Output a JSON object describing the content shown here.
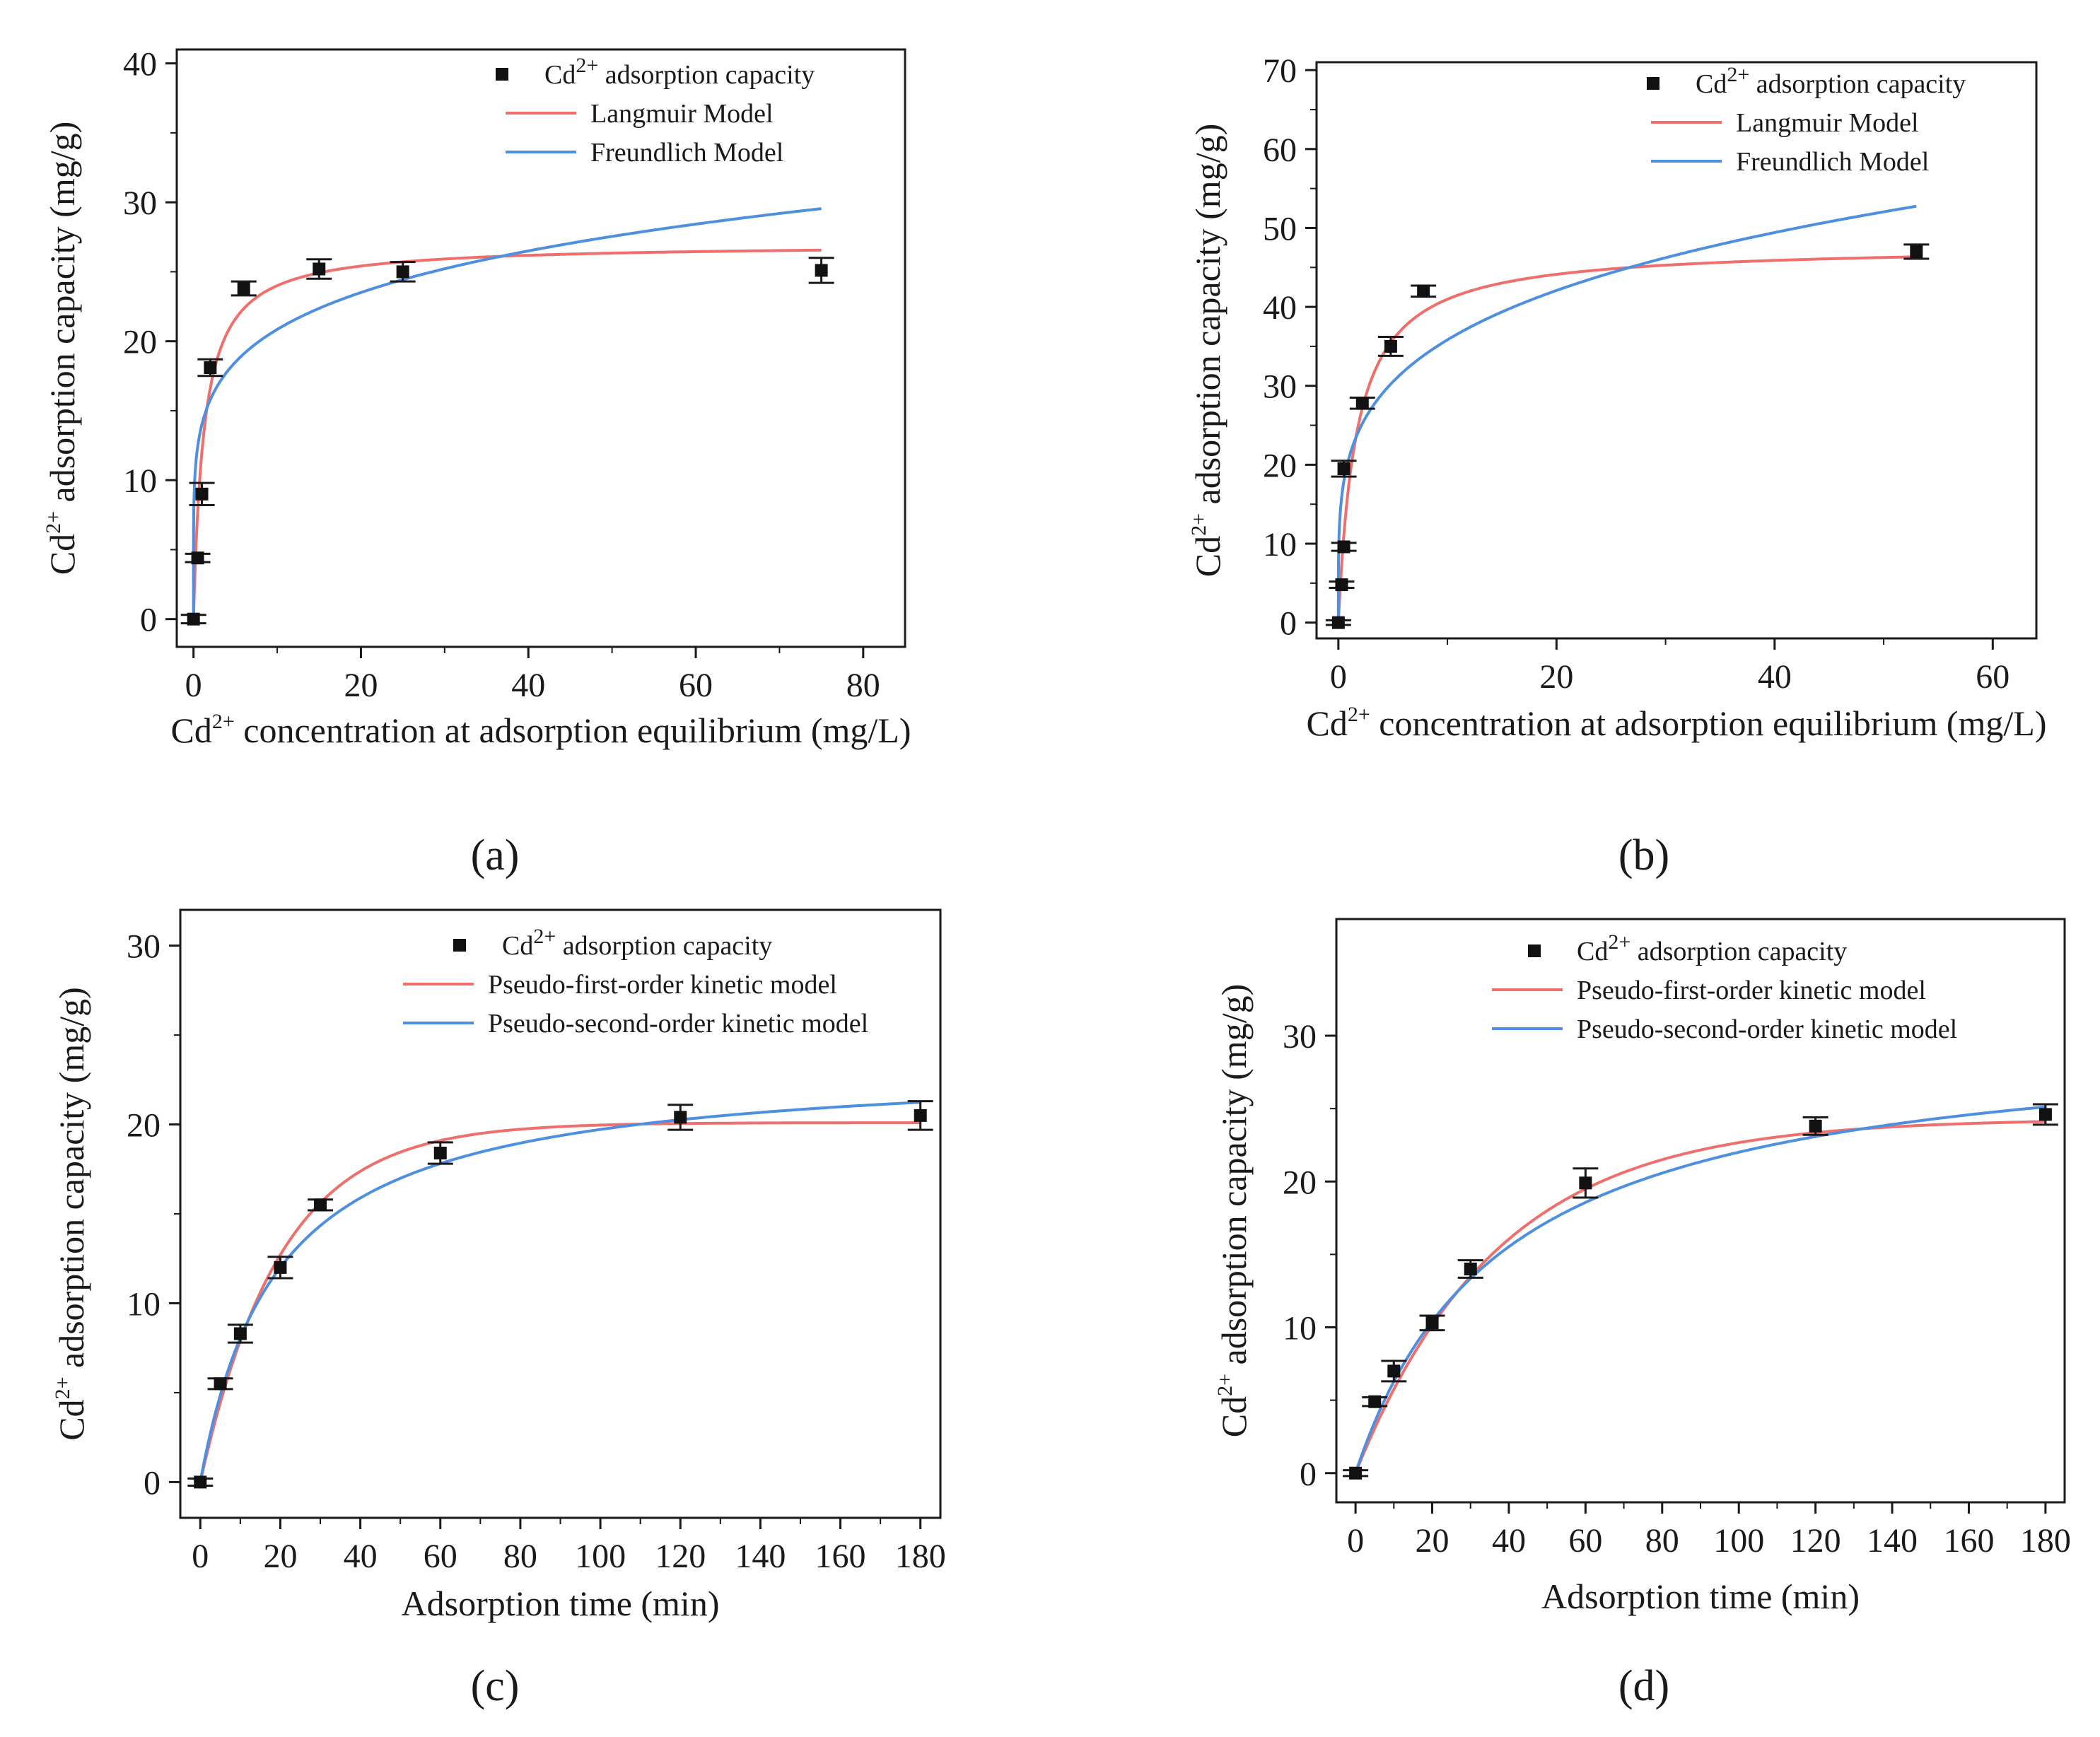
{
  "figure_labels": [
    "(a)",
    "(b)",
    "(c)",
    "(d)"
  ],
  "chart_data": [
    {
      "panel": "a",
      "type": "scatter",
      "ylabel_main": "Cd",
      "ylabel_sup": "2+",
      "ylabel_rest": " adsorption capacity (mg/g)",
      "xlabel_main": "Cd",
      "xlabel_sup": "2+",
      "xlabel_rest": " concentration at adsorption equilibrium (mg/L)",
      "xlim": [
        -2,
        85
      ],
      "ylim": [
        -2,
        41
      ],
      "xticks": [
        0,
        20,
        40,
        60,
        80
      ],
      "yticks": [
        0,
        10,
        20,
        30,
        40
      ],
      "points": {
        "name": "Cd2+ adsorption capacity",
        "legend_main": "Cd",
        "legend_sup": "2+",
        "legend_rest": " adsorption capacity",
        "x": [
          0,
          0.5,
          1,
          2,
          6,
          15,
          25,
          75
        ],
        "y": [
          0,
          4.4,
          9,
          18.1,
          23.8,
          25.2,
          25.0,
          25.1
        ],
        "err": [
          0.3,
          0.3,
          0.8,
          0.6,
          0.5,
          0.7,
          0.7,
          0.9
        ]
      },
      "curves": [
        {
          "name": "Langmuir Model",
          "color": "#ef6f6c",
          "model": "langmuir",
          "params": [
            27.0,
            0.8
          ],
          "xmax": 75
        },
        {
          "name": "Freundlich Model",
          "color": "#4f8fe0",
          "model": "freundlich",
          "params": [
            14.0,
            0.173
          ],
          "xmax": 75
        }
      ]
    },
    {
      "panel": "b",
      "type": "scatter",
      "ylabel_main": "Cd",
      "ylabel_sup": "2+",
      "ylabel_rest": " adsorption capacity (mg/g)",
      "xlabel_main": "Cd",
      "xlabel_sup": "2+",
      "xlabel_rest": " concentration at adsorption equilibrium (mg/L)",
      "xlim": [
        -2,
        64
      ],
      "ylim": [
        -2,
        71
      ],
      "xticks": [
        0,
        20,
        40,
        60
      ],
      "yticks": [
        0,
        10,
        20,
        30,
        40,
        50,
        60,
        70
      ],
      "points": {
        "name": "Cd2+ adsorption capacity",
        "legend_main": "Cd",
        "legend_sup": "2+",
        "legend_rest": " adsorption capacity",
        "x": [
          0,
          0.3,
          0.5,
          0.5,
          2.2,
          4.8,
          7.8,
          53
        ],
        "y": [
          0,
          4.8,
          9.6,
          19.5,
          27.8,
          35.0,
          42.0,
          47.0
        ],
        "err": [
          0.3,
          0.4,
          0.5,
          1.0,
          0.7,
          1.2,
          0.7,
          0.9
        ]
      },
      "curves": [
        {
          "name": "Langmuir Model",
          "color": "#ef6f6c",
          "model": "langmuir",
          "params": [
            47.8,
            0.6
          ],
          "xmax": 53
        },
        {
          "name": "Freundlich Model",
          "color": "#4f8fe0",
          "model": "freundlich",
          "params": [
            21.0,
            0.232
          ],
          "xmax": 53
        }
      ]
    },
    {
      "panel": "c",
      "type": "scatter",
      "ylabel_main": "Cd",
      "ylabel_sup": "2+",
      "ylabel_rest": " adsorption capacity (mg/g)",
      "xlabel_main": "Adsorption time (min)",
      "xlabel_sup": "",
      "xlabel_rest": "",
      "xlim": [
        -5,
        185
      ],
      "ylim": [
        -2,
        32
      ],
      "xticks": [
        0,
        20,
        40,
        60,
        80,
        100,
        120,
        140,
        160,
        180
      ],
      "yticks": [
        0,
        10,
        20,
        30
      ],
      "points": {
        "name": "Cd2+ adsorption capacity",
        "legend_main": "Cd",
        "legend_sup": "2+",
        "legend_rest": " adsorption capacity",
        "x": [
          0,
          5,
          10,
          20,
          30,
          60,
          120,
          180
        ],
        "y": [
          0,
          5.5,
          8.3,
          12.0,
          15.5,
          18.4,
          20.4,
          20.5
        ],
        "err": [
          0.2,
          0.3,
          0.5,
          0.6,
          0.3,
          0.6,
          0.7,
          0.8
        ]
      },
      "curves": [
        {
          "name": "Pseudo-first-order kinetic model",
          "color": "#ef6f6c",
          "model": "pfo",
          "params": [
            20.1,
            0.05
          ],
          "xmax": 180
        },
        {
          "name": "Pseudo-second-order kinetic model",
          "color": "#4f8fe0",
          "model": "pso",
          "params": [
            23.5,
            0.00222
          ],
          "xmax": 180
        }
      ]
    },
    {
      "panel": "d",
      "type": "scatter",
      "ylabel_main": "Cd",
      "ylabel_sup": "2+",
      "ylabel_rest": " adsorption capacity (mg/g)",
      "xlabel_main": "Adsorption time (min)",
      "xlabel_sup": "",
      "xlabel_rest": "",
      "xlim": [
        -5,
        185
      ],
      "ylim": [
        -2,
        38
      ],
      "xticks": [
        0,
        20,
        40,
        60,
        80,
        100,
        120,
        140,
        160,
        180
      ],
      "yticks": [
        0,
        10,
        20,
        30
      ],
      "points": {
        "name": "Cd2+ adsorption capacity",
        "legend_main": "Cd",
        "legend_sup": "2+",
        "legend_rest": " adsorption capacity",
        "x": [
          0,
          5,
          10,
          20,
          30,
          60,
          120,
          180
        ],
        "y": [
          0,
          4.9,
          7.0,
          10.3,
          14.0,
          19.9,
          23.8,
          24.6
        ],
        "err": [
          0.2,
          0.3,
          0.7,
          0.5,
          0.6,
          1.0,
          0.6,
          0.7
        ]
      },
      "curves": [
        {
          "name": "Pseudo-first-order kinetic model",
          "color": "#ef6f6c",
          "model": "pfo",
          "params": [
            24.3,
            0.027
          ],
          "xmax": 180
        },
        {
          "name": "Pseudo-second-order kinetic model",
          "color": "#4f8fe0",
          "model": "pso",
          "params": [
            30.5,
            0.00085
          ],
          "xmax": 180
        }
      ]
    }
  ]
}
